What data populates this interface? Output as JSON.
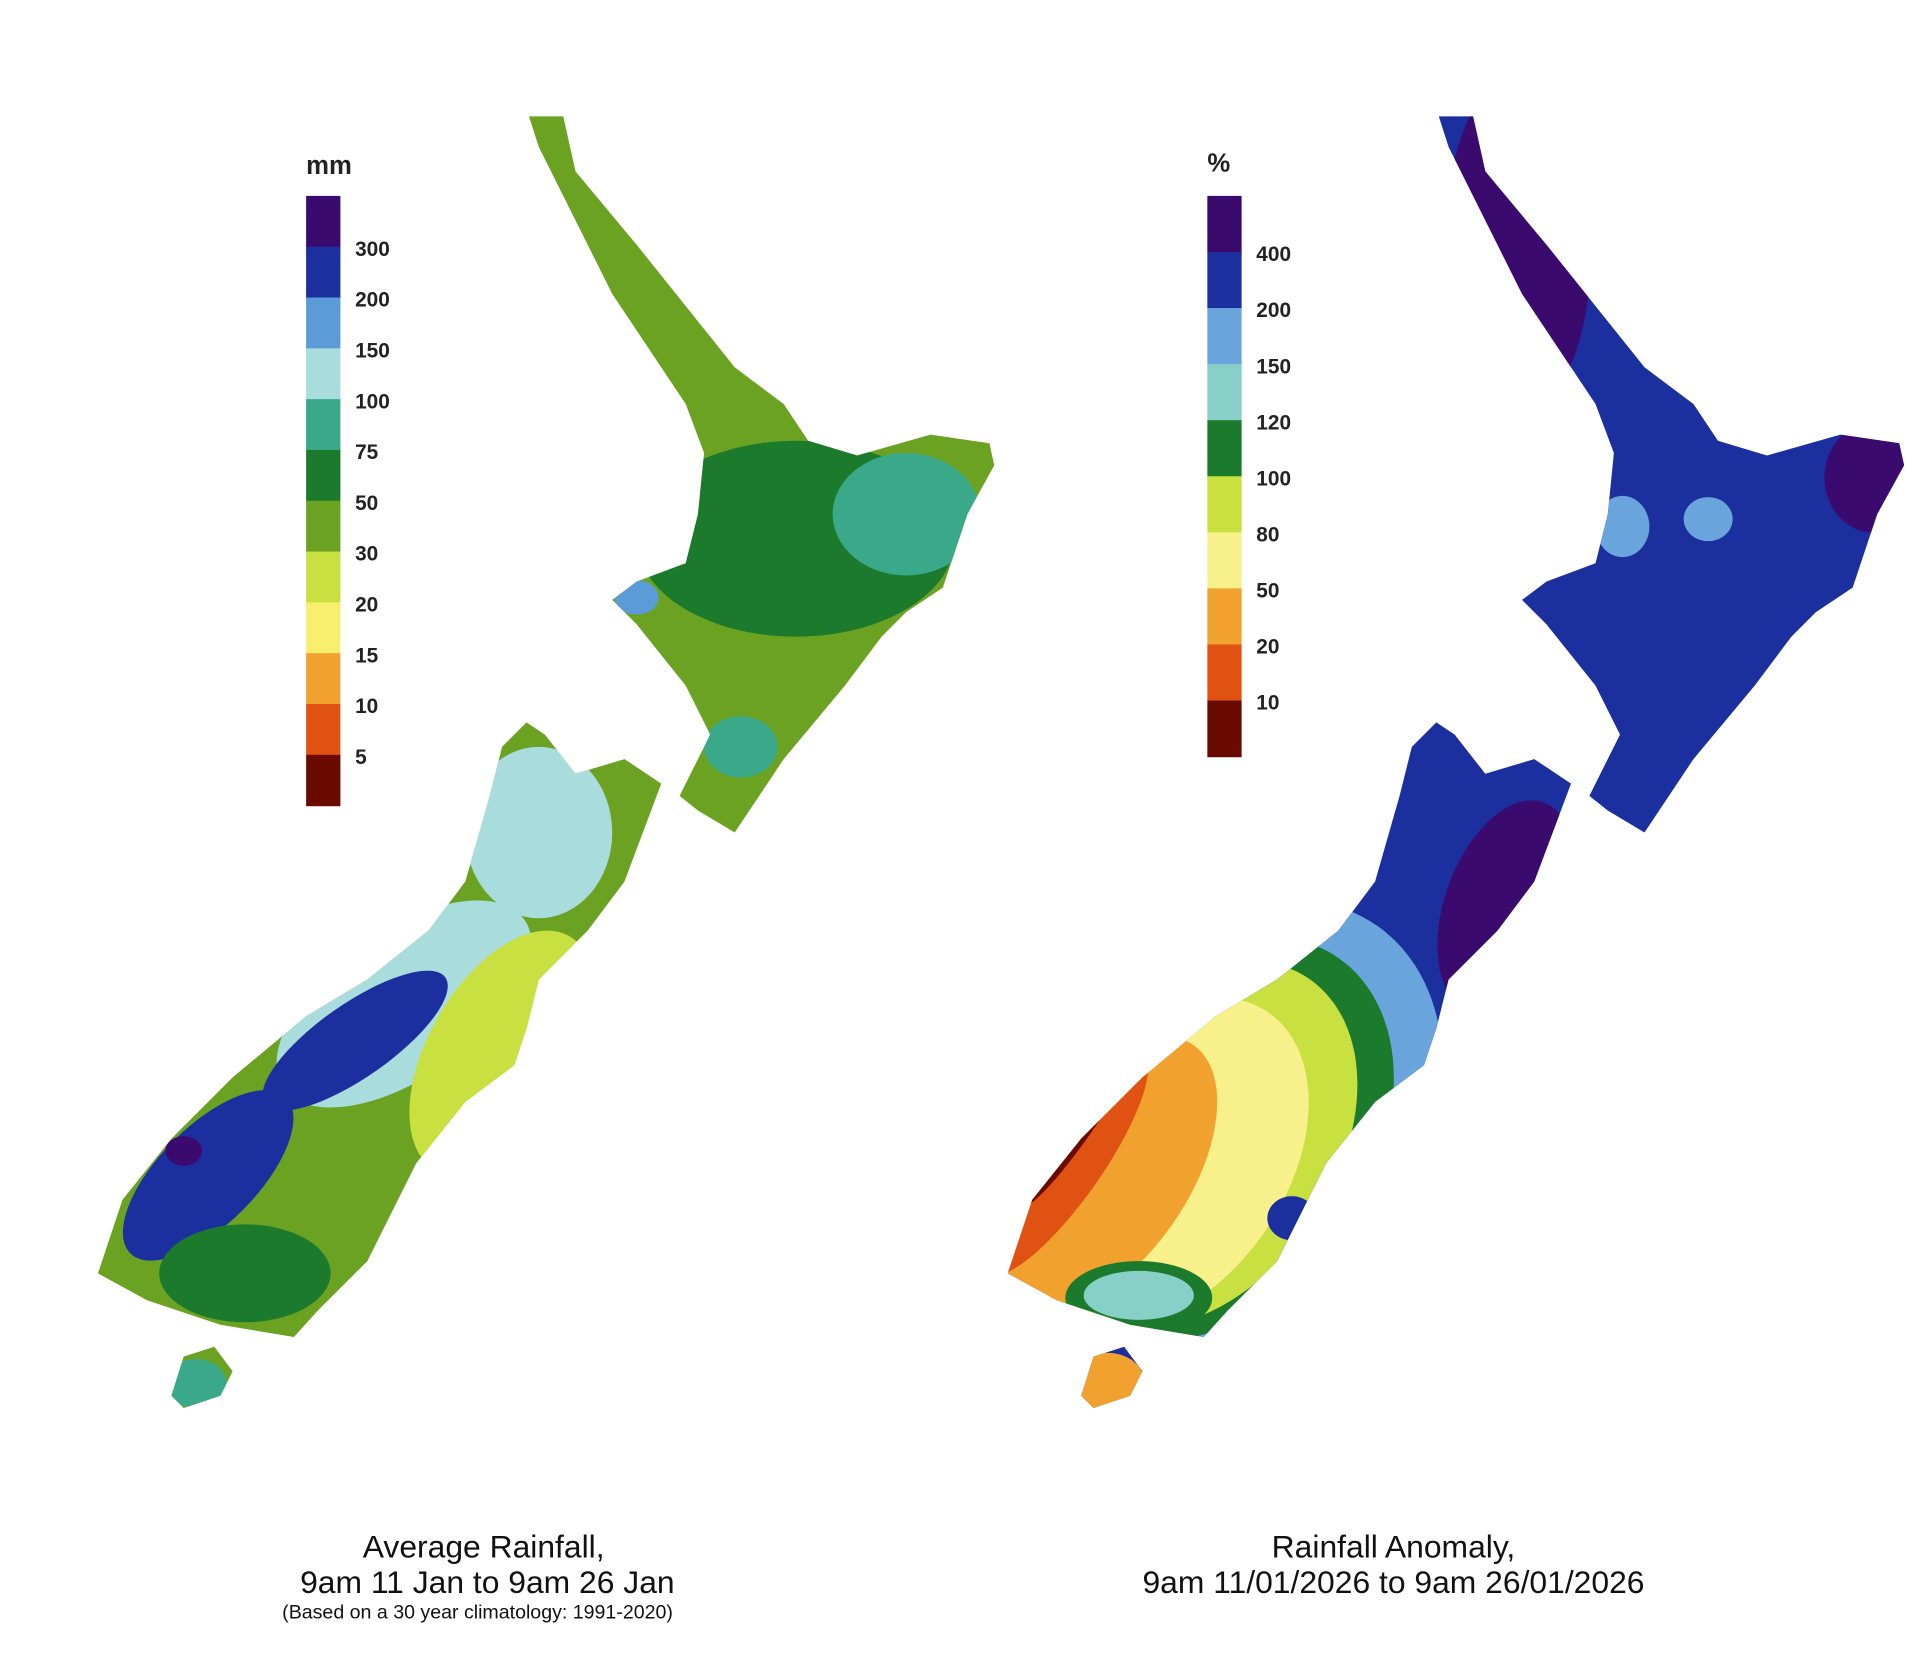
{
  "maps": [
    {
      "legend": {
        "unit": "mm",
        "items": [
          {
            "label": null,
            "color": "#3b0a6e"
          },
          {
            "label": 300,
            "color": "#1c2f9e"
          },
          {
            "label": 200,
            "color": "#5b9bd8"
          },
          {
            "label": 150,
            "color": "#a9dcdc"
          },
          {
            "label": 100,
            "color": "#3aa98a"
          },
          {
            "label": 75,
            "color": "#1c7a2c"
          },
          {
            "label": 50,
            "color": "#6ba222"
          },
          {
            "label": 30,
            "color": "#c9e140"
          },
          {
            "label": 20,
            "color": "#f8ef6e"
          },
          {
            "label": 15,
            "color": "#f1a12e"
          },
          {
            "label": 10,
            "color": "#e05212"
          },
          {
            "label": 5,
            "color": "#6a0b02"
          }
        ]
      },
      "caption": [
        "Average Rainfall,",
        "9am 11 Jan to 9am 26 Jan",
        "(Based on a 30 year climatology: 1991-2020)"
      ]
    },
    {
      "legend": {
        "unit": "%",
        "items": [
          {
            "label": null,
            "color": "#3b0a6e"
          },
          {
            "label": 400,
            "color": "#1c2f9e"
          },
          {
            "label": 200,
            "color": "#6aa4dc"
          },
          {
            "label": 150,
            "color": "#88cfc8"
          },
          {
            "label": 120,
            "color": "#1c7a2c"
          },
          {
            "label": 100,
            "color": "#c9e140"
          },
          {
            "label": 80,
            "color": "#f8f08a"
          },
          {
            "label": 50,
            "color": "#f1a12e"
          },
          {
            "label": 20,
            "color": "#e05212"
          },
          {
            "label": 10,
            "color": "#6a0b02"
          }
        ]
      },
      "caption": [
        "Rainfall Anomaly,",
        "9am 11/01/2026 to 9am 26/01/2026"
      ]
    }
  ]
}
